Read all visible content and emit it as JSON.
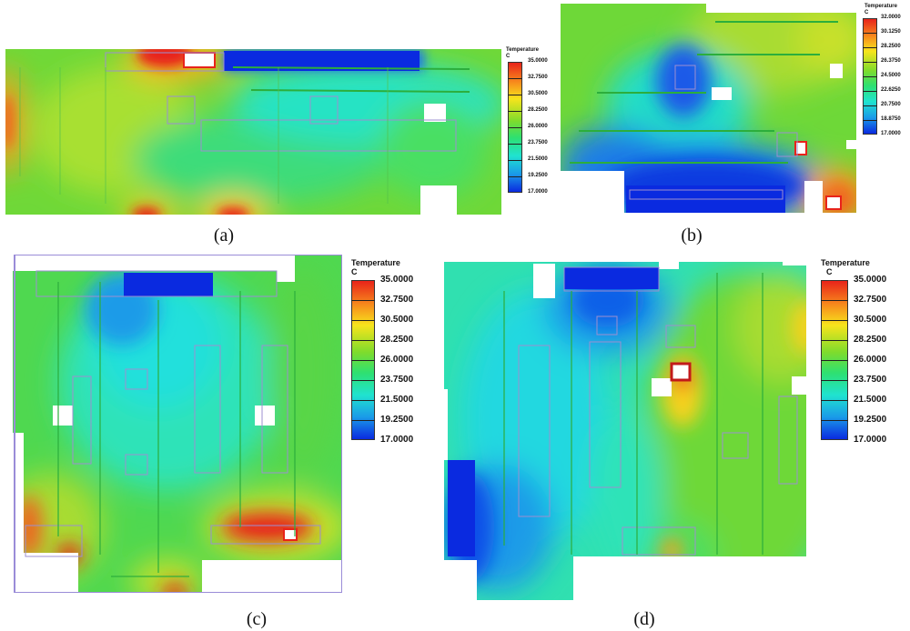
{
  "figure": {
    "panels": [
      {
        "label": "(a)",
        "legend": {
          "title": "Temperature",
          "unit": "C",
          "ticks": [
            "35.0000",
            "32.7500",
            "30.5000",
            "28.2500",
            "26.0000",
            "23.7500",
            "21.5000",
            "19.2500",
            "17.0000"
          ]
        }
      },
      {
        "label": "(b)",
        "legend": {
          "title": "Temperature",
          "unit": "C",
          "ticks": [
            "32.0000",
            "30.1250",
            "28.2500",
            "26.3750",
            "24.5000",
            "22.6250",
            "20.7500",
            "18.8750",
            "17.0000"
          ]
        }
      },
      {
        "label": "(c)",
        "legend": {
          "title": "Temperature",
          "unit": "C",
          "ticks": [
            "35.0000",
            "32.7500",
            "30.5000",
            "28.2500",
            "26.0000",
            "23.7500",
            "21.5000",
            "19.2500",
            "17.0000"
          ]
        }
      },
      {
        "label": "(d)",
        "legend": {
          "title": "Temperature",
          "unit": "C",
          "ticks": [
            "35.0000",
            "32.7500",
            "30.5000",
            "28.2500",
            "26.0000",
            "23.7500",
            "21.5000",
            "19.2500",
            "17.0000"
          ]
        }
      }
    ],
    "colors": {
      "hot": "#e8231a",
      "warm": "#f7d21c",
      "mid": "#63d637",
      "cool": "#20e3cf",
      "cold": "#1040e8",
      "frame": "#9a8cd8"
    }
  }
}
